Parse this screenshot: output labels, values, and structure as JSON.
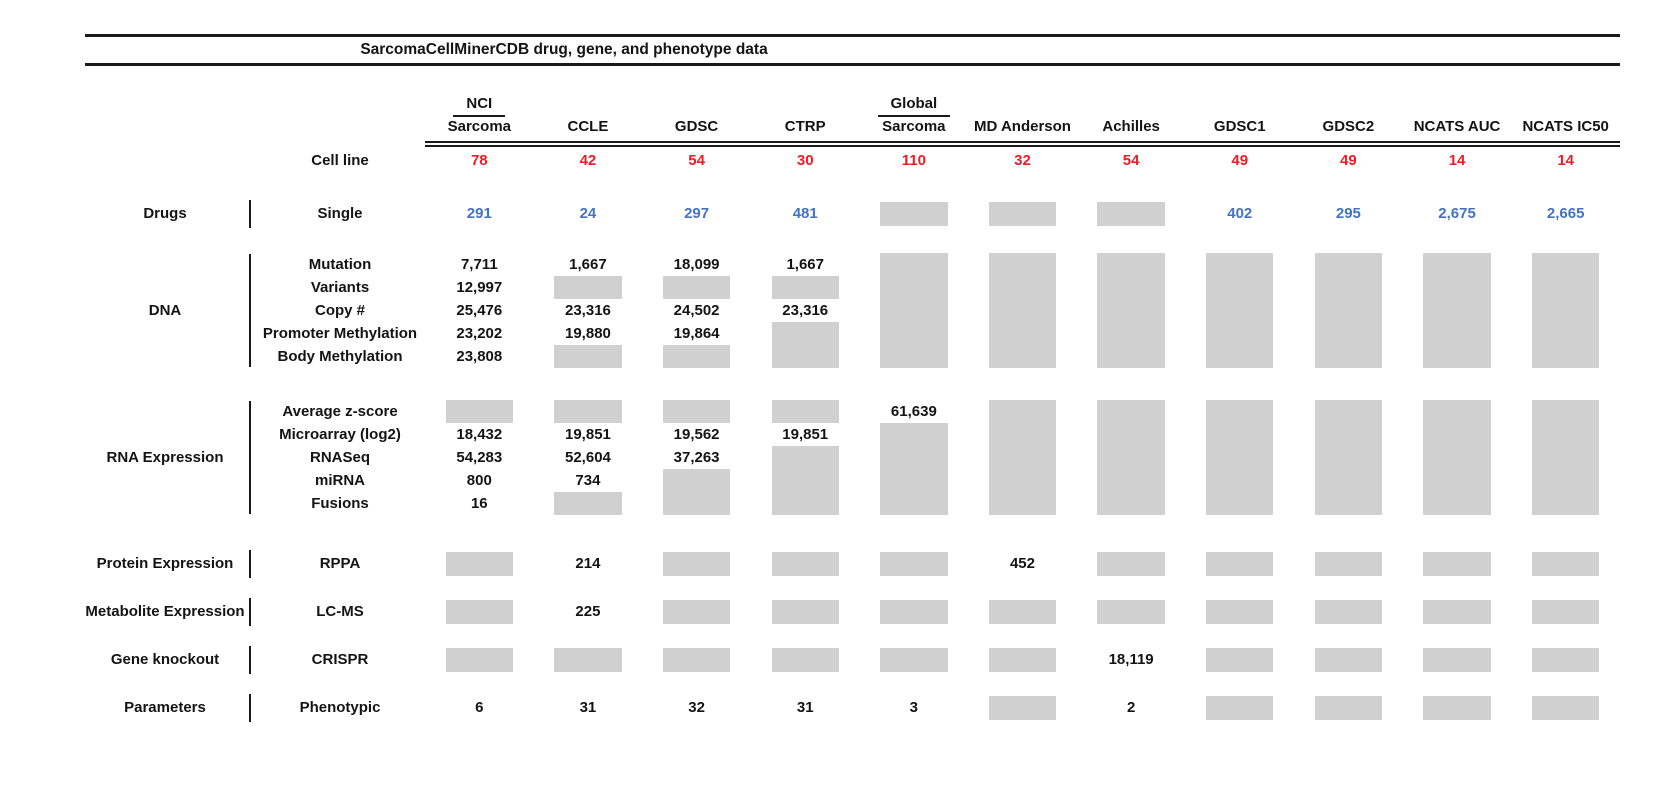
{
  "colors": {
    "red": "#ee1c25",
    "blue": "#4472c4",
    "gray": "#d1d0d0",
    "rule": "#1a1a1a"
  },
  "chart_data": {
    "type": "table",
    "title": "SarcomaCellMinerCDB drug, gene, and phenotype data",
    "legend_note": "gray box = data not available",
    "columns": [
      {
        "top": "NCI",
        "label": "Sarcoma",
        "cell_lines": "78"
      },
      {
        "label": "CCLE",
        "cell_lines": "42"
      },
      {
        "label": "GDSC",
        "cell_lines": "54"
      },
      {
        "label": "CTRP",
        "cell_lines": "30"
      },
      {
        "top": "Global",
        "label": "Sarcoma",
        "cell_lines": "110"
      },
      {
        "label": "MD Anderson",
        "cell_lines": "32"
      },
      {
        "label": "Achilles",
        "cell_lines": "54"
      },
      {
        "label": "GDSC1",
        "cell_lines": "49"
      },
      {
        "label": "GDSC2",
        "cell_lines": "49"
      },
      {
        "label": "NCATS AUC",
        "cell_lines": "14"
      },
      {
        "label": "NCATS IC50",
        "cell_lines": "14"
      }
    ],
    "cell_line_row": {
      "label": "Cell line",
      "values": [
        "78",
        "42",
        "54",
        "30",
        "110",
        "32",
        "54",
        "49",
        "49",
        "14",
        "14"
      ]
    },
    "groups": [
      {
        "label": "Drugs",
        "value_color": "blue",
        "rows": [
          {
            "label": "Single",
            "values": [
              "291",
              "24",
              "297",
              "481",
              null,
              null,
              null,
              "402",
              "295",
              "2,675",
              "2,665"
            ]
          }
        ]
      },
      {
        "label": "DNA",
        "rows": [
          {
            "label": "Mutation",
            "values": [
              "7,711",
              "1,667",
              "18,099",
              "1,667",
              null,
              null,
              null,
              null,
              null,
              null,
              null
            ]
          },
          {
            "label": "Variants",
            "values": [
              "12,997",
              null,
              null,
              null,
              null,
              null,
              null,
              null,
              null,
              null,
              null
            ]
          },
          {
            "label": "Copy #",
            "values": [
              "25,476",
              "23,316",
              "24,502",
              "23,316",
              null,
              null,
              null,
              null,
              null,
              null,
              null
            ]
          },
          {
            "label": "Promoter Methylation",
            "values": [
              "23,202",
              "19,880",
              "19,864",
              null,
              null,
              null,
              null,
              null,
              null,
              null,
              null
            ]
          },
          {
            "label": "Body Methylation",
            "values": [
              "23,808",
              null,
              null,
              null,
              null,
              null,
              null,
              null,
              null,
              null,
              null
            ]
          }
        ]
      },
      {
        "label": "RNA Expression",
        "rows": [
          {
            "label": "Average z-score",
            "values": [
              null,
              null,
              null,
              null,
              "61,639",
              null,
              null,
              null,
              null,
              null,
              null
            ]
          },
          {
            "label": "Microarray (log2)",
            "values": [
              "18,432",
              "19,851",
              "19,562",
              "19,851",
              null,
              null,
              null,
              null,
              null,
              null,
              null
            ]
          },
          {
            "label": "RNASeq",
            "values": [
              "54,283",
              "52,604",
              "37,263",
              null,
              null,
              null,
              null,
              null,
              null,
              null,
              null
            ]
          },
          {
            "label": "miRNA",
            "values": [
              "800",
              "734",
              null,
              null,
              null,
              null,
              null,
              null,
              null,
              null,
              null
            ]
          },
          {
            "label": "Fusions",
            "values": [
              "16",
              null,
              null,
              null,
              null,
              null,
              null,
              null,
              null,
              null,
              null
            ]
          }
        ]
      },
      {
        "label": "Protein Expression",
        "rows": [
          {
            "label": "RPPA",
            "values": [
              null,
              "214",
              null,
              null,
              null,
              "452",
              null,
              null,
              null,
              null,
              null
            ]
          }
        ]
      },
      {
        "label": "Metabolite Expression",
        "rows": [
          {
            "label": "LC-MS",
            "values": [
              null,
              "225",
              null,
              null,
              null,
              null,
              null,
              null,
              null,
              null,
              null
            ]
          }
        ]
      },
      {
        "label": "Gene knockout",
        "rows": [
          {
            "label": "CRISPR",
            "values": [
              null,
              null,
              null,
              null,
              null,
              null,
              "18,119",
              null,
              null,
              null,
              null
            ]
          }
        ]
      },
      {
        "label": "Parameters",
        "rows": [
          {
            "label": "Phenotypic",
            "values": [
              "6",
              "31",
              "32",
              "31",
              "3",
              null,
              "2",
              null,
              null,
              null,
              null
            ]
          }
        ]
      }
    ]
  }
}
